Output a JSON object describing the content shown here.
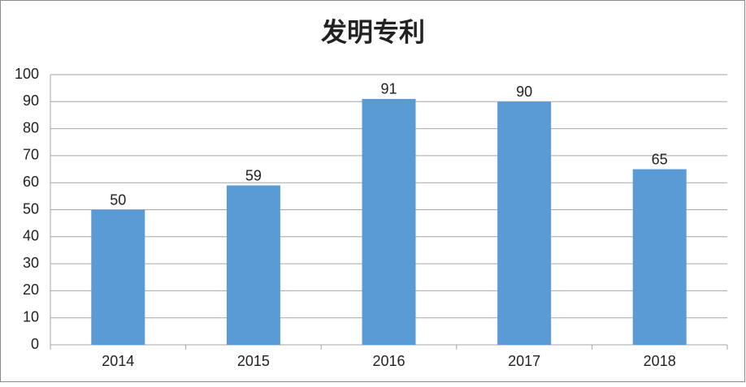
{
  "chart_data": {
    "type": "bar",
    "title": "发明专利",
    "categories": [
      "2014",
      "2015",
      "2016",
      "2017",
      "2018"
    ],
    "values": [
      50,
      59,
      91,
      90,
      65
    ],
    "color": "#5b9bd5",
    "ylim": [
      0,
      100
    ],
    "yticks": [
      0,
      10,
      20,
      30,
      40,
      50,
      60,
      70,
      80,
      90,
      100
    ],
    "grid": true
  }
}
